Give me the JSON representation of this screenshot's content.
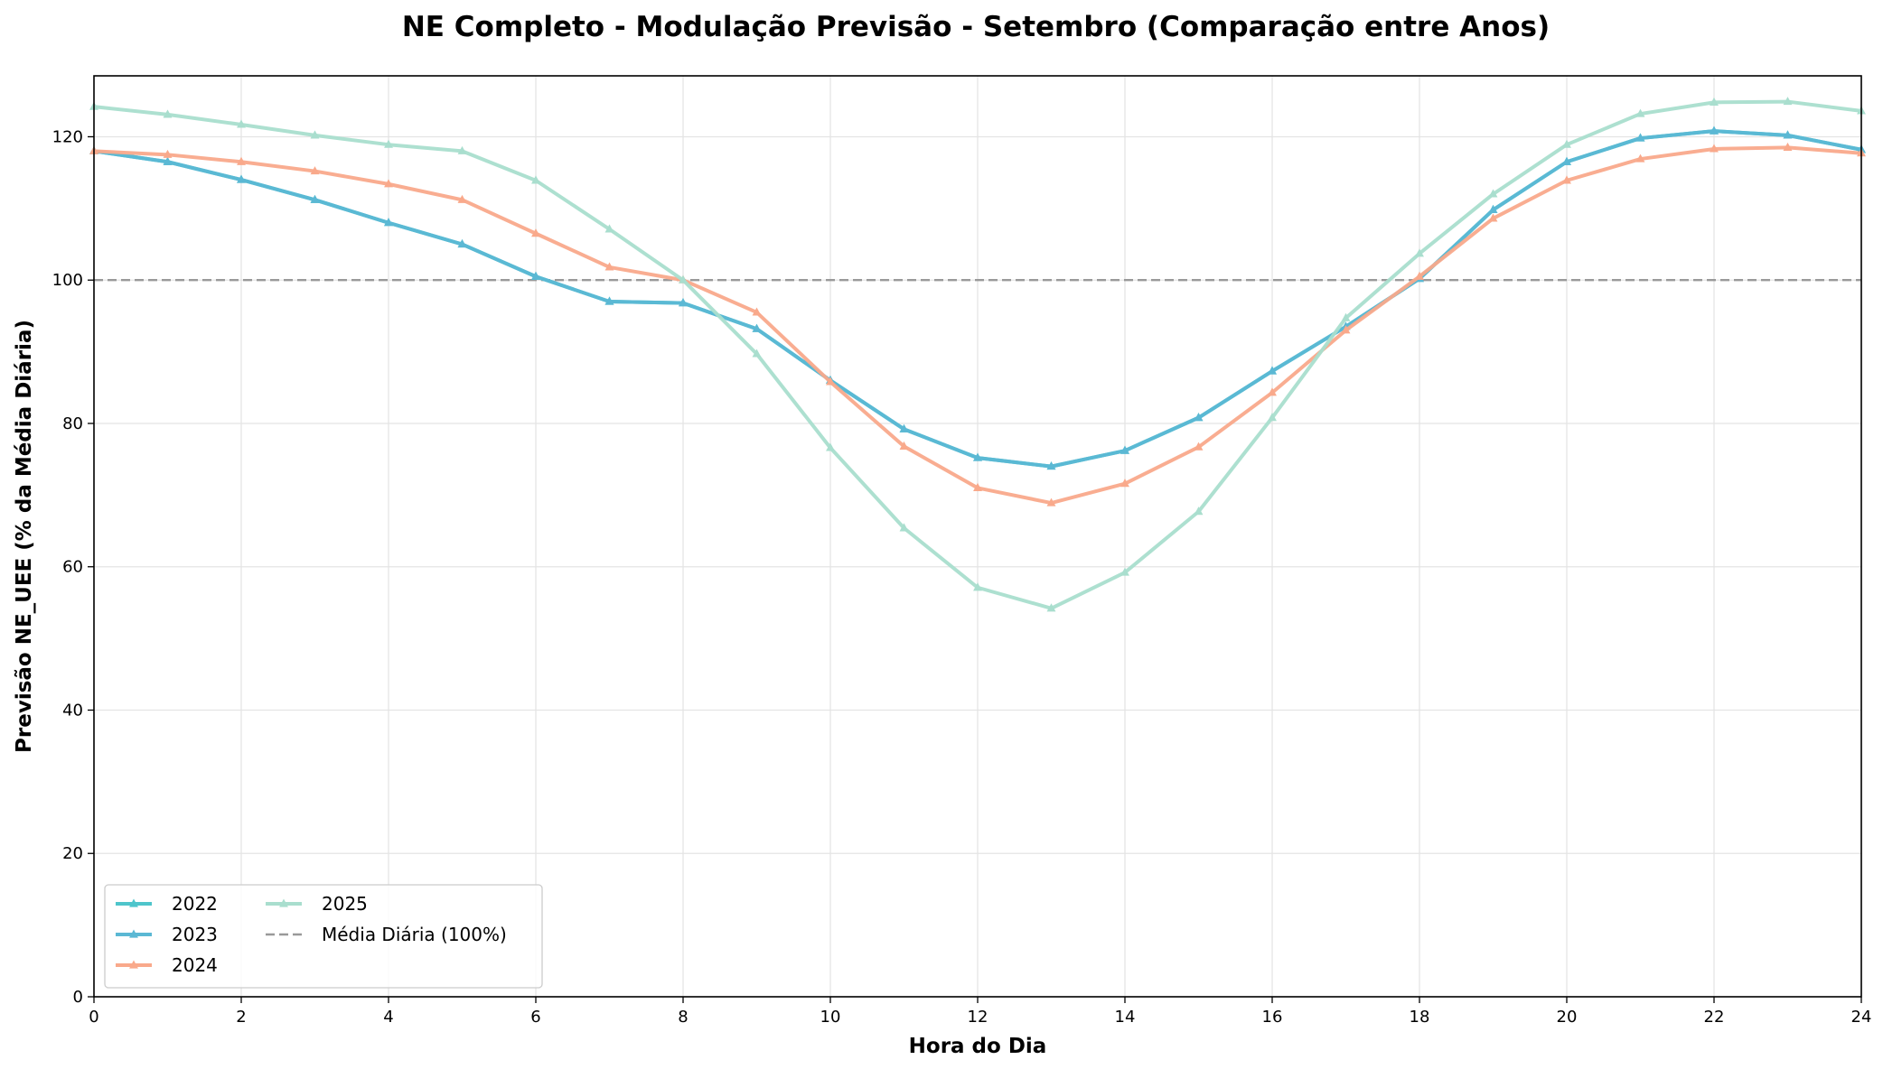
{
  "chart_data": {
    "type": "line",
    "title": "NE Completo - Modulação Previsão - Setembro (Comparação entre Anos)",
    "xlabel": "Hora do Dia",
    "ylabel": "Previsão NE_UEE (% da Média Diária)",
    "xlim": [
      0,
      24
    ],
    "ylim": [
      0,
      128.5
    ],
    "xticks": [
      "0",
      "2",
      "4",
      "6",
      "8",
      "10",
      "12",
      "14",
      "16",
      "18",
      "20",
      "22",
      "24"
    ],
    "yticks": [
      "0",
      "20",
      "40",
      "60",
      "80",
      "100",
      "120"
    ],
    "grid": true,
    "legend_position": "lower-left",
    "x": [
      0,
      1,
      2,
      3,
      4,
      5,
      6,
      7,
      8,
      9,
      10,
      11,
      12,
      13,
      14,
      15,
      16,
      17,
      18,
      19,
      20,
      21,
      22,
      23,
      24
    ],
    "series": [
      {
        "name": "2022",
        "color": "#4ec5cb",
        "values": [
          118.0,
          116.5,
          114.0,
          111.2,
          108.0,
          105.0,
          100.5,
          97.0,
          96.8,
          93.2,
          86.0,
          79.2,
          75.2,
          74.0,
          76.2,
          80.8,
          87.3,
          93.5,
          100.2,
          109.8,
          116.5,
          119.8,
          120.8,
          120.2,
          118.2
        ]
      },
      {
        "name": "2023",
        "color": "#5bb8d4",
        "values": [
          118.0,
          116.5,
          114.0,
          111.2,
          108.0,
          105.0,
          100.5,
          97.0,
          96.8,
          93.2,
          86.0,
          79.2,
          75.2,
          74.0,
          76.2,
          80.8,
          87.3,
          93.5,
          100.2,
          109.8,
          116.5,
          119.8,
          120.8,
          120.2,
          118.2
        ]
      },
      {
        "name": "2024",
        "color": "#f9a98b",
        "values": [
          118.0,
          117.5,
          116.5,
          115.2,
          113.4,
          111.2,
          106.5,
          101.8,
          100.0,
          95.5,
          85.8,
          76.8,
          71.0,
          68.9,
          71.6,
          76.7,
          84.3,
          93.0,
          100.5,
          108.6,
          113.9,
          116.9,
          118.3,
          118.5,
          117.7
        ]
      },
      {
        "name": "2025",
        "color": "#a9dece",
        "values": [
          124.2,
          123.1,
          121.7,
          120.2,
          118.9,
          118.0,
          113.9,
          107.1,
          100.0,
          89.7,
          76.6,
          65.4,
          57.1,
          54.2,
          59.2,
          67.7,
          80.8,
          94.7,
          103.7,
          112.0,
          118.9,
          123.2,
          124.8,
          124.9,
          123.6
        ]
      }
    ],
    "reference_line": {
      "name": "Média Diária (100%)",
      "value": 100,
      "color": "#999999"
    }
  }
}
